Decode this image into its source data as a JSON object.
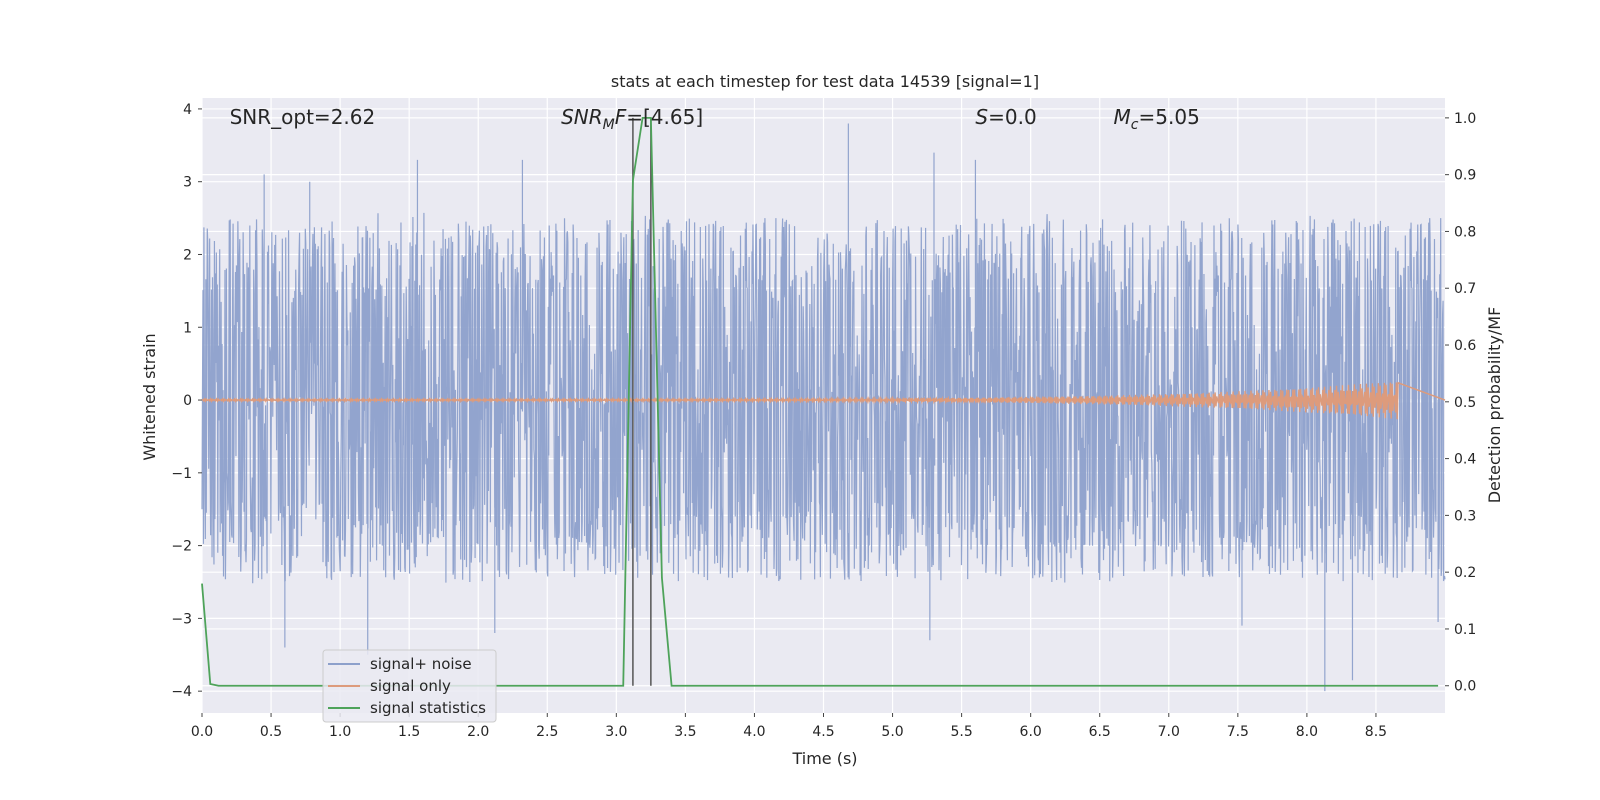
{
  "chart_data": {
    "type": "line",
    "title": "stats at each timestep for test data 14539 [signal=1]",
    "xlabel": "Time (s)",
    "ylabel": "Whitened strain",
    "y2label": "Detection probability/MF",
    "xlim": [
      0.0,
      9.0
    ],
    "ylim": [
      -4.3,
      4.15
    ],
    "y2lim": [
      -0.048,
      1.035
    ],
    "xticks": [
      0.0,
      0.5,
      1.0,
      1.5,
      2.0,
      2.5,
      3.0,
      3.5,
      4.0,
      4.5,
      5.0,
      5.5,
      6.0,
      6.5,
      7.0,
      7.5,
      8.0,
      8.5
    ],
    "xtick_labels": [
      "0.0",
      "0.5",
      "1.0",
      "1.5",
      "2.0",
      "2.5",
      "3.0",
      "3.5",
      "4.0",
      "4.5",
      "5.0",
      "5.5",
      "6.0",
      "6.5",
      "7.0",
      "7.5",
      "8.0",
      "8.5"
    ],
    "yticks": [
      -4,
      -3,
      -2,
      -1,
      0,
      1,
      2,
      3,
      4
    ],
    "ytick_labels": [
      "−4",
      "−3",
      "−2",
      "−1",
      "0",
      "1",
      "2",
      "3",
      "4"
    ],
    "y2ticks": [
      0.0,
      0.1,
      0.2,
      0.3,
      0.4,
      0.5,
      0.6,
      0.7,
      0.8,
      0.9,
      1.0
    ],
    "y2tick_labels": [
      "0.0",
      "0.1",
      "0.2",
      "0.3",
      "0.4",
      "0.5",
      "0.6",
      "0.7",
      "0.8",
      "0.9",
      "1.0"
    ],
    "grid": true,
    "legend_position": "lower-left",
    "annotations": [
      {
        "text": "SNR_opt=2.62",
        "x": 0.2
      },
      {
        "text": "SNR_MF=[4.65]",
        "x": 2.6
      },
      {
        "text": "S=0.0",
        "x": 5.6
      },
      {
        "text": "M_c=5.05",
        "x": 6.6
      }
    ],
    "vlines": [
      3.12,
      3.25
    ],
    "series": [
      {
        "name": "signal+ noise",
        "axis": "left",
        "color": "#8da0cb",
        "style": "noise",
        "x_range": [
          0.0,
          9.0
        ],
        "amplitude": 2.6,
        "peaks": [
          [
            0.45,
            3.1
          ],
          [
            0.78,
            3.0
          ],
          [
            1.56,
            3.3
          ],
          [
            2.32,
            3.3
          ],
          [
            4.68,
            3.8
          ],
          [
            5.3,
            3.4
          ],
          [
            5.6,
            3.3
          ],
          [
            0.6,
            -3.4
          ],
          [
            1.2,
            -3.5
          ],
          [
            2.12,
            -3.2
          ],
          [
            5.27,
            -3.3
          ],
          [
            7.53,
            -3.1
          ],
          [
            8.13,
            -4.0
          ],
          [
            8.33,
            -3.85
          ],
          [
            8.95,
            -3.05
          ]
        ]
      },
      {
        "name": "signal only",
        "axis": "left",
        "color": "#dd9b7c",
        "style": "chirp",
        "x_range": [
          0.0,
          8.66
        ],
        "amplitude_end": 0.25
      },
      {
        "name": "signal statistics",
        "axis": "right",
        "color": "#4ea35a",
        "style": "line",
        "x": [
          0.0,
          0.06,
          0.12,
          3.05,
          3.12,
          3.19,
          3.25,
          3.33,
          3.4,
          8.95
        ],
        "y": [
          0.18,
          0.003,
          0.0,
          0.0,
          0.89,
          1.0,
          1.0,
          0.19,
          0.0,
          0.0
        ]
      }
    ]
  }
}
